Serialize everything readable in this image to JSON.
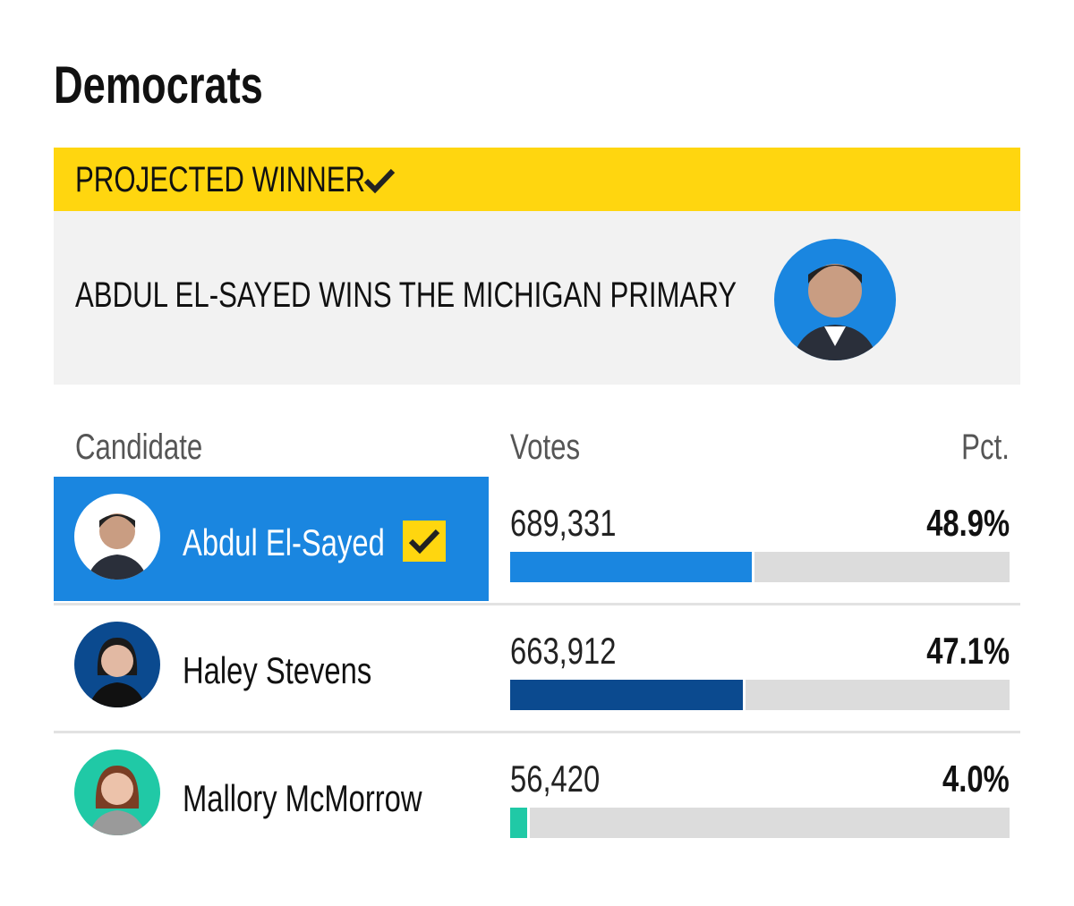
{
  "heading": "Democrats",
  "banner": {
    "label": "PROJECTED WINNER",
    "headline": "ABDUL EL-SAYED WINS THE MICHIGAN PRIMARY"
  },
  "table": {
    "columns": [
      "Candidate",
      "Votes",
      "Pct."
    ],
    "rows": [
      {
        "name": "Abdul El-Sayed",
        "votes": "689,331",
        "pct": {
          "value": 48.9,
          "label": "48.9%"
        },
        "color": "#1a86e0",
        "winner": true
      },
      {
        "name": "Haley Stevens",
        "votes": "663,912",
        "pct": {
          "value": 47.1,
          "label": "47.1%"
        },
        "color": "#0b4a8f",
        "winner": false
      },
      {
        "name": "Mallory McMorrow",
        "votes": "56,420",
        "pct": {
          "value": 4.0,
          "label": "4.0%"
        },
        "color": "#20c9a6",
        "winner": false
      }
    ]
  }
}
